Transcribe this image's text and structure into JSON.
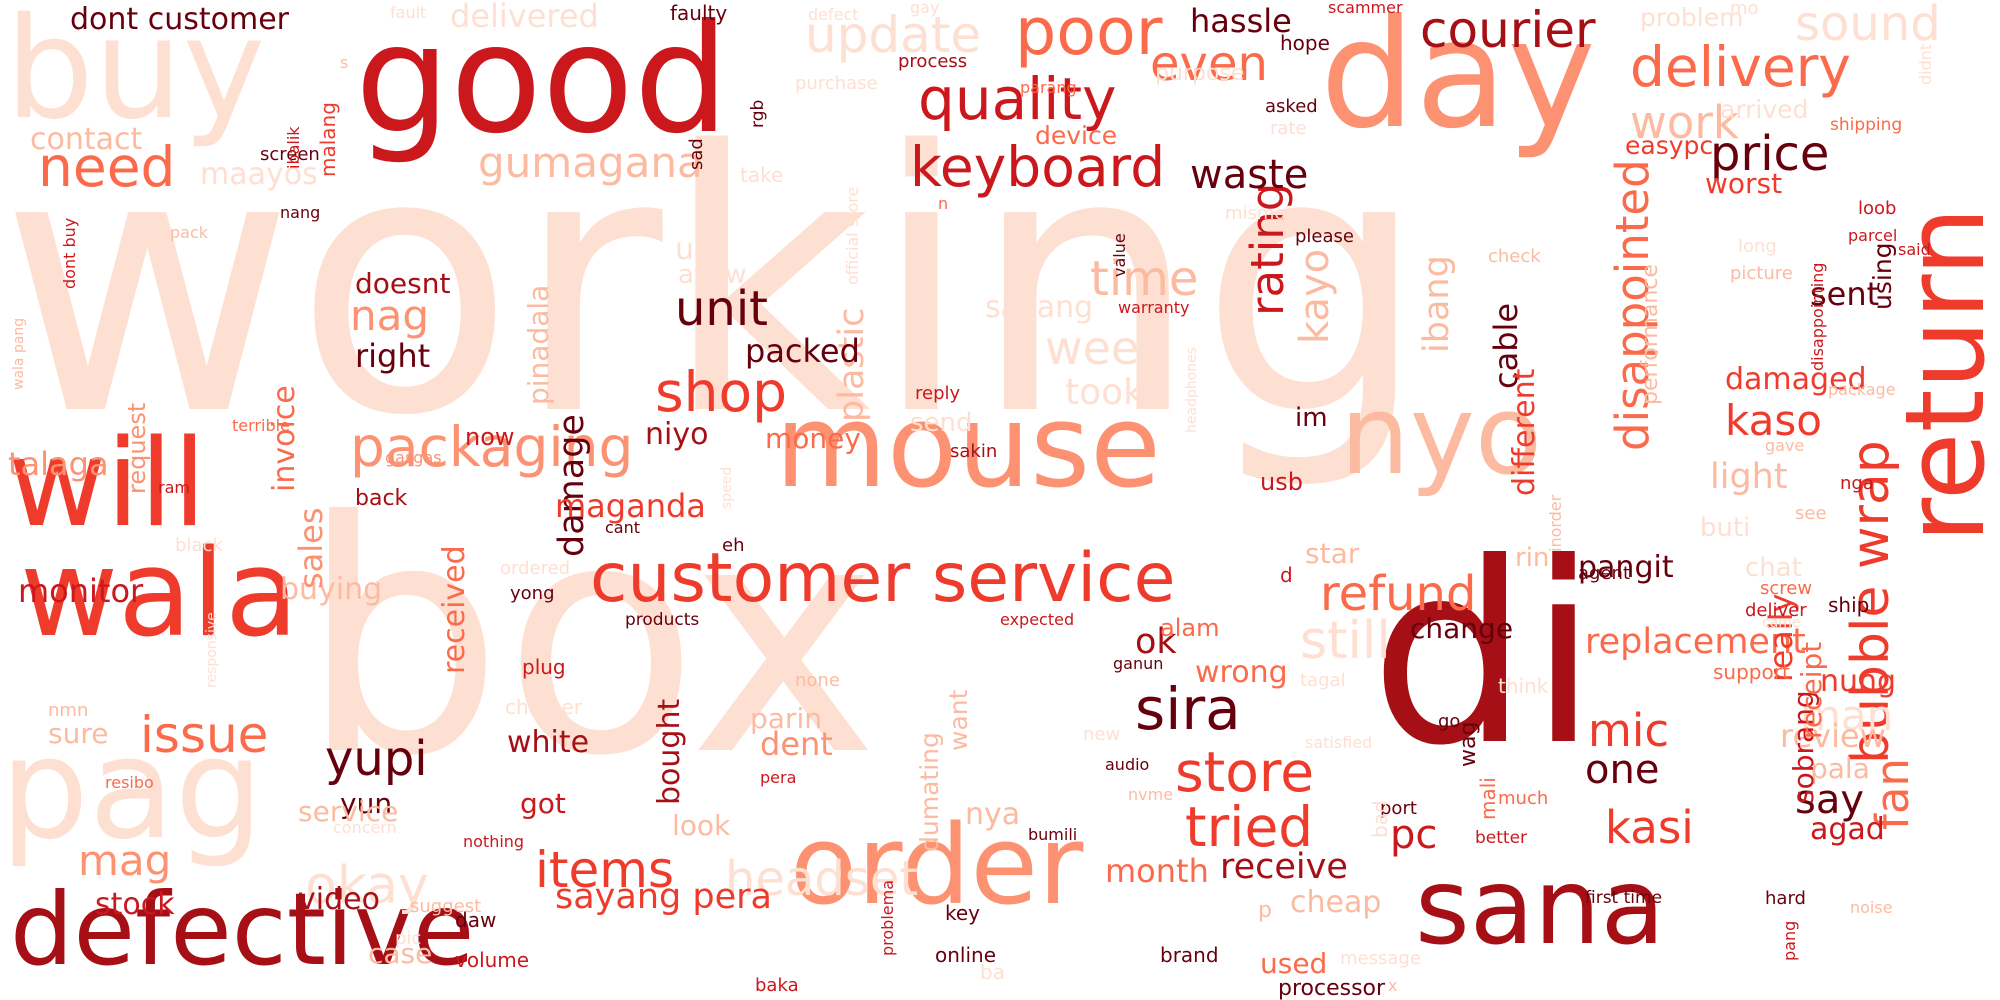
{
  "palette": {
    "pale": "#fee0d2",
    "light": "#fcbba1",
    "salmon": "#fc9272",
    "coral": "#fb6a4a",
    "red": "#ef3b2c",
    "crimson": "#cb181d",
    "dark": "#a50f15",
    "darkest": "#67000d"
  },
  "words": [
    {
      "text": "working",
      "color": "pale"
    },
    {
      "text": "box",
      "color": "pale"
    },
    {
      "text": "di",
      "color": "dark"
    },
    {
      "text": "good",
      "color": "crimson"
    },
    {
      "text": "day",
      "color": "salmon"
    },
    {
      "text": "buy",
      "color": "pale"
    },
    {
      "text": "pag",
      "color": "pale"
    },
    {
      "text": "mouse",
      "color": "salmon"
    },
    {
      "text": "nyo",
      "color": "light"
    },
    {
      "text": "return",
      "color": "red"
    },
    {
      "text": "will",
      "color": "red"
    },
    {
      "text": "wala",
      "color": "red"
    },
    {
      "text": "order",
      "color": "salmon"
    },
    {
      "text": "sana",
      "color": "dark"
    },
    {
      "text": "defective",
      "color": "dark"
    },
    {
      "text": "customer service",
      "color": "red"
    },
    {
      "text": "poor",
      "color": "coral"
    },
    {
      "text": "quality",
      "color": "crimson"
    },
    {
      "text": "keyboard",
      "color": "crimson"
    },
    {
      "text": "courier",
      "color": "dark"
    },
    {
      "text": "delivery",
      "color": "coral"
    },
    {
      "text": "update",
      "color": "pale"
    },
    {
      "text": "sound",
      "color": "pale"
    },
    {
      "text": "price",
      "color": "darkest"
    },
    {
      "text": "packaging",
      "color": "salmon"
    },
    {
      "text": "need",
      "color": "coral"
    },
    {
      "text": "gumagana",
      "color": "light"
    },
    {
      "text": "shop",
      "color": "red"
    },
    {
      "text": "unit",
      "color": "darkest"
    },
    {
      "text": "time",
      "color": "light"
    },
    {
      "text": "week",
      "color": "pale"
    },
    {
      "text": "sira",
      "color": "darkest"
    },
    {
      "text": "store",
      "color": "red"
    },
    {
      "text": "tried",
      "color": "red"
    },
    {
      "text": "refund",
      "color": "coral"
    },
    {
      "text": "still",
      "color": "pale"
    },
    {
      "text": "headset",
      "color": "pale"
    },
    {
      "text": "items",
      "color": "red"
    },
    {
      "text": "okay",
      "color": "pale"
    },
    {
      "text": "issue",
      "color": "coral"
    },
    {
      "text": "yupi",
      "color": "darkest"
    },
    {
      "text": "bubble wrap",
      "color": "red"
    },
    {
      "text": "disappointed",
      "color": "coral"
    },
    {
      "text": "rating",
      "color": "crimson"
    },
    {
      "text": "kayo",
      "color": "light"
    },
    {
      "text": "waste",
      "color": "darkest"
    },
    {
      "text": "kaso",
      "color": "red"
    },
    {
      "text": "hassle",
      "color": "darkest"
    },
    {
      "text": "even",
      "color": "coral"
    },
    {
      "text": "work",
      "color": "light"
    },
    {
      "text": "mic",
      "color": "red"
    },
    {
      "text": "kasi",
      "color": "red"
    },
    {
      "text": "pc",
      "color": "crimson"
    },
    {
      "text": "one",
      "color": "darkest"
    },
    {
      "text": "say",
      "color": "darkest"
    },
    {
      "text": "fan",
      "color": "coral"
    },
    {
      "text": "man",
      "color": "pale"
    },
    {
      "text": "review",
      "color": "light"
    },
    {
      "text": "replacement",
      "color": "coral"
    },
    {
      "text": "receive",
      "color": "dark"
    },
    {
      "text": "month",
      "color": "coral"
    },
    {
      "text": "sayang pera",
      "color": "red"
    },
    {
      "text": "mag",
      "color": "salmon"
    },
    {
      "text": "stock",
      "color": "crimson"
    },
    {
      "text": "video",
      "color": "dark"
    },
    {
      "text": "monitor",
      "color": "crimson"
    },
    {
      "text": "buying",
      "color": "light"
    },
    {
      "text": "talaga",
      "color": "salmon"
    },
    {
      "text": "nag",
      "color": "salmon"
    },
    {
      "text": "right",
      "color": "darkest"
    },
    {
      "text": "doesnt",
      "color": "dark"
    },
    {
      "text": "invoice",
      "color": "coral"
    },
    {
      "text": "damage",
      "color": "darkest"
    },
    {
      "text": "plastic",
      "color": "light"
    },
    {
      "text": "packed",
      "color": "darkest"
    },
    {
      "text": "niyo",
      "color": "dark"
    },
    {
      "text": "maganda",
      "color": "red"
    },
    {
      "text": "ok",
      "color": "dark"
    },
    {
      "text": "wrong",
      "color": "coral"
    },
    {
      "text": "dont customer",
      "color": "darkest"
    },
    {
      "text": "delivered",
      "color": "pale"
    },
    {
      "text": "contact",
      "color": "light"
    },
    {
      "text": "maayos",
      "color": "pale"
    },
    {
      "text": "white",
      "color": "dark"
    },
    {
      "text": "got",
      "color": "crimson"
    },
    {
      "text": "yun",
      "color": "darkest"
    },
    {
      "text": "service",
      "color": "light"
    },
    {
      "text": "sure",
      "color": "light"
    },
    {
      "text": "received",
      "color": "coral"
    },
    {
      "text": "sales",
      "color": "salmon"
    },
    {
      "text": "dent",
      "color": "salmon"
    },
    {
      "text": "parin",
      "color": "light"
    },
    {
      "text": "look",
      "color": "light"
    },
    {
      "text": "nya",
      "color": "light"
    },
    {
      "text": "cheap",
      "color": "light"
    },
    {
      "text": "used",
      "color": "coral"
    },
    {
      "text": "processor",
      "color": "darkest"
    },
    {
      "text": "case",
      "color": "light"
    },
    {
      "text": "volume",
      "color": "crimson"
    },
    {
      "text": "online",
      "color": "darkest"
    },
    {
      "text": "brand",
      "color": "darkest"
    },
    {
      "text": "key",
      "color": "darkest"
    },
    {
      "text": "star",
      "color": "light"
    },
    {
      "text": "usb",
      "color": "crimson"
    },
    {
      "text": "alam",
      "color": "coral"
    },
    {
      "text": "change",
      "color": "darkest"
    },
    {
      "text": "pangit",
      "color": "darkest"
    },
    {
      "text": "light",
      "color": "light"
    },
    {
      "text": "damaged",
      "color": "red"
    },
    {
      "text": "sent",
      "color": "darkest"
    },
    {
      "text": "nung",
      "color": "red"
    },
    {
      "text": "agad",
      "color": "crimson"
    },
    {
      "text": "pala",
      "color": "light"
    },
    {
      "text": "really",
      "color": "red"
    },
    {
      "text": "sobrang",
      "color": "crimson"
    },
    {
      "text": "receipt",
      "color": "coral"
    },
    {
      "text": "ibang",
      "color": "light"
    },
    {
      "text": "cable",
      "color": "darkest"
    },
    {
      "text": "different",
      "color": "red"
    },
    {
      "text": "performance",
      "color": "light"
    },
    {
      "text": "worst",
      "color": "red"
    },
    {
      "text": "easypc",
      "color": "red"
    },
    {
      "text": "using",
      "color": "darkest"
    },
    {
      "text": "im",
      "color": "darkest"
    },
    {
      "text": "took",
      "color": "pale"
    },
    {
      "text": "sayang",
      "color": "pale"
    },
    {
      "text": "use",
      "color": "pale"
    },
    {
      "text": "ayaw",
      "color": "pale"
    },
    {
      "text": "send",
      "color": "pale"
    },
    {
      "text": "money",
      "color": "coral"
    },
    {
      "text": "now",
      "color": "crimson"
    },
    {
      "text": "back",
      "color": "dark"
    },
    {
      "text": "pinadala",
      "color": "light"
    },
    {
      "text": "request",
      "color": "salmon"
    },
    {
      "text": "dumating",
      "color": "light"
    },
    {
      "text": "want",
      "color": "light"
    },
    {
      "text": "bought",
      "color": "dark"
    },
    {
      "text": "device",
      "color": "coral"
    },
    {
      "text": "asked",
      "color": "darkest"
    },
    {
      "text": "please",
      "color": "darkest"
    },
    {
      "text": "hope",
      "color": "darkest"
    },
    {
      "text": "scammer",
      "color": "crimson"
    },
    {
      "text": "faulty",
      "color": "darkest"
    },
    {
      "text": "rgb",
      "color": "darkest"
    },
    {
      "text": "sad",
      "color": "darkest"
    },
    {
      "text": "screen",
      "color": "darkest"
    },
    {
      "text": "nang",
      "color": "darkest"
    },
    {
      "text": "ibalik",
      "color": "crimson"
    },
    {
      "text": "malang",
      "color": "red"
    },
    {
      "text": "process",
      "color": "dark"
    },
    {
      "text": "parang",
      "color": "coral"
    },
    {
      "text": "purchase",
      "color": "pale"
    },
    {
      "text": "purpose",
      "color": "pale"
    },
    {
      "text": "problem",
      "color": "pale"
    },
    {
      "text": "arrived",
      "color": "pale"
    },
    {
      "text": "shipping",
      "color": "coral"
    },
    {
      "text": "loob",
      "color": "crimson"
    },
    {
      "text": "parcel",
      "color": "crimson"
    },
    {
      "text": "said",
      "color": "crimson"
    },
    {
      "text": "long",
      "color": "pale"
    },
    {
      "text": "picture",
      "color": "light"
    },
    {
      "text": "disappointing",
      "color": "crimson"
    },
    {
      "text": "mismong",
      "color": "pale"
    },
    {
      "text": "value",
      "color": "darkest"
    },
    {
      "text": "warranty",
      "color": "crimson"
    },
    {
      "text": "headphones",
      "color": "pale"
    },
    {
      "text": "check",
      "color": "light"
    },
    {
      "text": "rate",
      "color": "pale"
    },
    {
      "text": "reply",
      "color": "crimson"
    },
    {
      "text": "sakin",
      "color": "dark"
    },
    {
      "text": "terrible",
      "color": "coral"
    },
    {
      "text": "gasgas",
      "color": "salmon"
    },
    {
      "text": "ram",
      "color": "crimson"
    },
    {
      "text": "black",
      "color": "pale"
    },
    {
      "text": "cant",
      "color": "darkest"
    },
    {
      "text": "eh",
      "color": "darkest"
    },
    {
      "text": "ordered",
      "color": "pale"
    },
    {
      "text": "yong",
      "color": "darkest"
    },
    {
      "text": "products",
      "color": "darkest"
    },
    {
      "text": "expected",
      "color": "crimson"
    },
    {
      "text": "plug",
      "color": "crimson"
    },
    {
      "text": "charger",
      "color": "pale"
    },
    {
      "text": "none",
      "color": "light"
    },
    {
      "text": "pera",
      "color": "crimson"
    },
    {
      "text": "ganun",
      "color": "darkest"
    },
    {
      "text": "audio",
      "color": "darkest"
    },
    {
      "text": "new",
      "color": "pale"
    },
    {
      "text": "nvme",
      "color": "light"
    },
    {
      "text": "bumili",
      "color": "darkest"
    },
    {
      "text": "nothing",
      "color": "crimson"
    },
    {
      "text": "daw",
      "color": "darkest"
    },
    {
      "text": "suggest",
      "color": "light"
    },
    {
      "text": "baka",
      "color": "crimson"
    },
    {
      "text": "problema",
      "color": "crimson"
    },
    {
      "text": "ba",
      "color": "pale"
    },
    {
      "text": "nmn",
      "color": "light"
    },
    {
      "text": "resibo",
      "color": "coral"
    },
    {
      "text": "concern",
      "color": "pale"
    },
    {
      "text": "responsive",
      "color": "pale"
    },
    {
      "text": "speed",
      "color": "pale"
    },
    {
      "text": "pack",
      "color": "light"
    },
    {
      "text": "dont buy",
      "color": "crimson"
    },
    {
      "text": "wala pang",
      "color": "light"
    },
    {
      "text": "fault",
      "color": "pale"
    },
    {
      "text": "defect",
      "color": "pale"
    },
    {
      "text": "gay",
      "color": "pale"
    },
    {
      "text": "take",
      "color": "pale"
    },
    {
      "text": "official store",
      "color": "pale"
    },
    {
      "text": "n",
      "color": "coral"
    },
    {
      "text": "d",
      "color": "crimson"
    },
    {
      "text": "rin",
      "color": "light"
    },
    {
      "text": "chat",
      "color": "pale"
    },
    {
      "text": "buti",
      "color": "pale"
    },
    {
      "text": "agent",
      "color": "darkest"
    },
    {
      "text": "screw",
      "color": "coral"
    },
    {
      "text": "deliver",
      "color": "crimson"
    },
    {
      "text": "came",
      "color": "pale"
    },
    {
      "text": "ship",
      "color": "darkest"
    },
    {
      "text": "support",
      "color": "coral"
    },
    {
      "text": "go",
      "color": "darkest"
    },
    {
      "text": "think",
      "color": "pale"
    },
    {
      "text": "tagal",
      "color": "pale"
    },
    {
      "text": "satisfied",
      "color": "pale"
    },
    {
      "text": "wag",
      "color": "darkest"
    },
    {
      "text": "mali",
      "color": "coral"
    },
    {
      "text": "port",
      "color": "darkest"
    },
    {
      "text": "much",
      "color": "coral"
    },
    {
      "text": "better",
      "color": "crimson"
    },
    {
      "text": "first time",
      "color": "darkest"
    },
    {
      "text": "hard",
      "color": "darkest"
    },
    {
      "text": "pang",
      "color": "crimson"
    },
    {
      "text": "message",
      "color": "pale"
    },
    {
      "text": "inorder",
      "color": "light"
    },
    {
      "text": "bad",
      "color": "pale"
    },
    {
      "text": "gave",
      "color": "light"
    },
    {
      "text": "see",
      "color": "light"
    },
    {
      "text": "nga",
      "color": "crimson"
    },
    {
      "text": "package",
      "color": "light"
    },
    {
      "text": "noise",
      "color": "light"
    },
    {
      "text": "didnt",
      "color": "pale"
    },
    {
      "text": "mo",
      "color": "pale"
    },
    {
      "text": "pic",
      "color": "pale"
    },
    {
      "text": "s",
      "color": "light"
    },
    {
      "text": "p",
      "color": "light"
    },
    {
      "text": "x",
      "color": "light"
    }
  ]
}
